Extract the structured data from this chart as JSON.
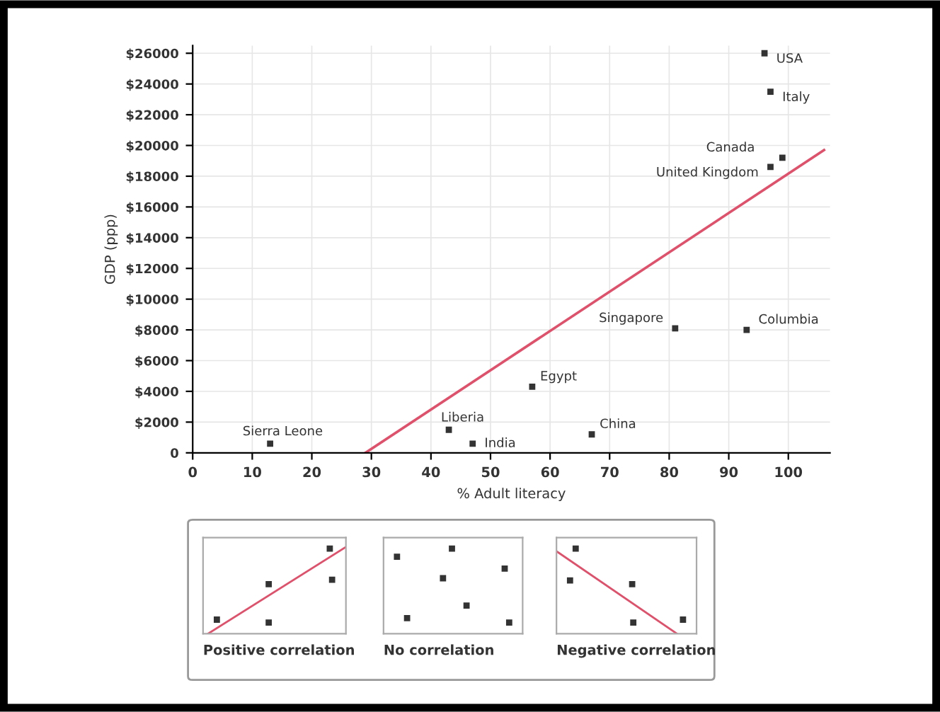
{
  "chart_data": [
    {
      "type": "scatter",
      "xlabel": "% Adult literacy",
      "ylabel": "GDP (ppp)",
      "xlim": [
        0,
        107
      ],
      "ylim": [
        0,
        26500
      ],
      "xticks": [
        0,
        10,
        20,
        30,
        40,
        50,
        60,
        70,
        80,
        90,
        100
      ],
      "yticks": [
        0,
        {
          "value": 2000,
          "label": "$2000"
        },
        {
          "value": 4000,
          "label": "$4000"
        },
        {
          "value": 6000,
          "label": "$6000"
        },
        {
          "value": 8000,
          "label": "$8000"
        },
        {
          "value": 10000,
          "label": "$10000"
        },
        {
          "value": 12000,
          "label": "$12000"
        },
        {
          "value": 14000,
          "label": "$14000"
        },
        {
          "value": 16000,
          "label": "$16000"
        },
        {
          "value": 18000,
          "label": "$18000"
        },
        {
          "value": 20000,
          "label": "$20000"
        },
        {
          "value": 22000,
          "label": "$22000"
        },
        {
          "value": 24000,
          "label": "$24000"
        },
        {
          "value": 26000,
          "label": "$26000"
        }
      ],
      "grid": true,
      "series": [
        {
          "color": "#333333",
          "marker": "square",
          "x": [
            96,
            97,
            99,
            97,
            81,
            93,
            57,
            67,
            43,
            47,
            13
          ],
          "values": [
            26000,
            23500,
            19200,
            18600,
            8100,
            8000,
            4300,
            1200,
            1500,
            600,
            600
          ]
        },
        {
          "type": "line",
          "color": "#e0506a",
          "x": [
            29,
            106
          ],
          "values": [
            0,
            19700
          ]
        }
      ],
      "annotations": [
        {
          "text": "USA",
          "x": 96,
          "y": 26000
        },
        {
          "text": "Italy",
          "x": 97,
          "y": 23500
        },
        {
          "text": "Canada",
          "x": 99,
          "y": 19200
        },
        {
          "text": "United Kingdom",
          "x": 97,
          "y": 18600
        },
        {
          "text": "Singapore",
          "x": 81,
          "y": 8100
        },
        {
          "text": "Columbia",
          "x": 93,
          "y": 8000
        },
        {
          "text": "Egypt",
          "x": 57,
          "y": 4300
        },
        {
          "text": "China",
          "x": 67,
          "y": 1200
        },
        {
          "text": "Liberia",
          "x": 43,
          "y": 1500
        },
        {
          "text": "India",
          "x": 47,
          "y": 600
        },
        {
          "text": "Sierra Leone",
          "x": 13,
          "y": 600
        }
      ]
    },
    {
      "type": "other",
      "annotations": [
        "Positive correlation",
        "No correlation",
        "Negative correlation"
      ]
    }
  ]
}
